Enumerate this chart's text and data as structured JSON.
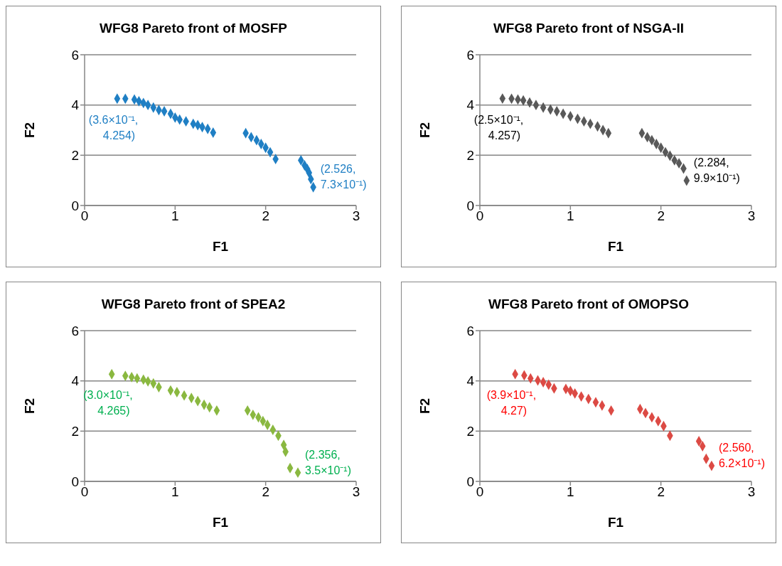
{
  "chart_data": [
    {
      "type": "scatter",
      "title": "WFG8 Pareto front of MOSFP",
      "xlabel": "F1",
      "ylabel": "F2",
      "xlim": [
        0,
        3
      ],
      "ylim": [
        0,
        6
      ],
      "xticks": [
        0,
        1,
        2,
        3
      ],
      "yticks": [
        0,
        2,
        4,
        6
      ],
      "grid": "y",
      "marker": "diamond",
      "legend": false,
      "series": [
        {
          "color": "#1f7fc4",
          "x": [
            0.36,
            0.45,
            0.55,
            0.6,
            0.65,
            0.7,
            0.76,
            0.82,
            0.88,
            0.95,
            1.0,
            1.05,
            1.12,
            1.2,
            1.25,
            1.3,
            1.36,
            1.42,
            1.78,
            1.84,
            1.9,
            1.95,
            2.0,
            2.05,
            2.11,
            2.39,
            2.43,
            2.46,
            2.48,
            2.5,
            2.526
          ],
          "values": [
            4.254,
            4.25,
            4.22,
            4.15,
            4.08,
            4.0,
            3.9,
            3.8,
            3.75,
            3.65,
            3.5,
            3.42,
            3.35,
            3.25,
            3.2,
            3.12,
            3.05,
            2.9,
            2.88,
            2.72,
            2.6,
            2.45,
            2.3,
            2.12,
            1.85,
            1.8,
            1.6,
            1.45,
            1.3,
            1.05,
            0.73
          ]
        }
      ],
      "annotations": [
        {
          "text": "(3.6×10⁻¹, 4.254)",
          "x": 0.36,
          "y": 4.254
        },
        {
          "text": "(2.526, 7.3×10⁻¹)",
          "x": 2.526,
          "y": 0.73
        }
      ]
    },
    {
      "type": "scatter",
      "title": "WFG8 Pareto front of NSGA-II",
      "xlabel": "F1",
      "ylabel": "F2",
      "xlim": [
        0,
        3
      ],
      "ylim": [
        0,
        6
      ],
      "xticks": [
        0,
        1,
        2,
        3
      ],
      "yticks": [
        0,
        2,
        4,
        6
      ],
      "grid": "y",
      "marker": "diamond",
      "legend": false,
      "series": [
        {
          "color": "#595959",
          "x": [
            0.25,
            0.35,
            0.42,
            0.48,
            0.55,
            0.62,
            0.7,
            0.78,
            0.85,
            0.92,
            1.0,
            1.08,
            1.15,
            1.22,
            1.3,
            1.36,
            1.42,
            1.79,
            1.85,
            1.9,
            1.95,
            2.0,
            2.05,
            2.1,
            2.15,
            2.2,
            2.25,
            2.284
          ],
          "values": [
            4.257,
            4.25,
            4.22,
            4.18,
            4.1,
            4.0,
            3.9,
            3.82,
            3.75,
            3.65,
            3.55,
            3.45,
            3.35,
            3.25,
            3.15,
            3.0,
            2.88,
            2.88,
            2.72,
            2.6,
            2.45,
            2.3,
            2.12,
            1.98,
            1.8,
            1.68,
            1.47,
            0.99
          ]
        }
      ],
      "annotations": [
        {
          "text": "(2.5×10⁻¹, 4.257)",
          "x": 0.25,
          "y": 4.257
        },
        {
          "text": "(2.284, 9.9×10⁻¹)",
          "x": 2.284,
          "y": 0.99
        }
      ]
    },
    {
      "type": "scatter",
      "title": "WFG8 Pareto front of SPEA2",
      "xlabel": "F1",
      "ylabel": "F2",
      "xlim": [
        0,
        3
      ],
      "ylim": [
        0,
        6
      ],
      "xticks": [
        0,
        1,
        2,
        3
      ],
      "yticks": [
        0,
        2,
        4,
        6
      ],
      "grid": "y",
      "marker": "diamond",
      "legend": false,
      "series": [
        {
          "color": "#8ab840",
          "x": [
            0.3,
            0.45,
            0.52,
            0.58,
            0.65,
            0.7,
            0.76,
            0.82,
            0.95,
            1.02,
            1.1,
            1.18,
            1.25,
            1.32,
            1.38,
            1.46,
            1.8,
            1.86,
            1.92,
            1.97,
            2.02,
            2.08,
            2.14,
            2.2,
            2.22,
            2.27,
            2.356
          ],
          "values": [
            4.265,
            4.2,
            4.15,
            4.1,
            4.05,
            3.98,
            3.9,
            3.75,
            3.62,
            3.55,
            3.42,
            3.32,
            3.2,
            3.05,
            2.95,
            2.82,
            2.82,
            2.65,
            2.55,
            2.4,
            2.25,
            2.05,
            1.82,
            1.45,
            1.18,
            0.53,
            0.35
          ]
        }
      ],
      "annotations": [
        {
          "text": "(3.0×10⁻¹, 4.265)",
          "x": 0.3,
          "y": 4.265
        },
        {
          "text": "(2.356, 3.5×10⁻¹)",
          "x": 2.356,
          "y": 0.35
        }
      ]
    },
    {
      "type": "scatter",
      "title": "WFG8 Pareto front of OMOPSO",
      "xlabel": "F1",
      "ylabel": "F2",
      "xlim": [
        0,
        3
      ],
      "ylim": [
        0,
        6
      ],
      "xticks": [
        0,
        1,
        2,
        3
      ],
      "yticks": [
        0,
        2,
        4,
        6
      ],
      "grid": "y",
      "marker": "diamond",
      "legend": false,
      "series": [
        {
          "color": "#dc4a44",
          "x": [
            0.39,
            0.49,
            0.56,
            0.64,
            0.7,
            0.76,
            0.82,
            0.95,
            1.0,
            1.05,
            1.12,
            1.2,
            1.28,
            1.35,
            1.45,
            1.77,
            1.83,
            1.9,
            1.97,
            2.03,
            2.1,
            2.42,
            2.46,
            2.5,
            2.56
          ],
          "values": [
            4.27,
            4.22,
            4.1,
            4.02,
            3.95,
            3.85,
            3.7,
            3.68,
            3.6,
            3.5,
            3.38,
            3.28,
            3.15,
            3.02,
            2.82,
            2.88,
            2.72,
            2.55,
            2.4,
            2.2,
            1.82,
            1.6,
            1.4,
            0.9,
            0.62
          ]
        }
      ],
      "annotations": [
        {
          "text": "(3.9×10⁻¹, 4.27)",
          "x": 0.39,
          "y": 4.27
        },
        {
          "text": "(2.560, 6.2×10⁻¹)",
          "x": 2.56,
          "y": 0.62
        }
      ]
    }
  ]
}
